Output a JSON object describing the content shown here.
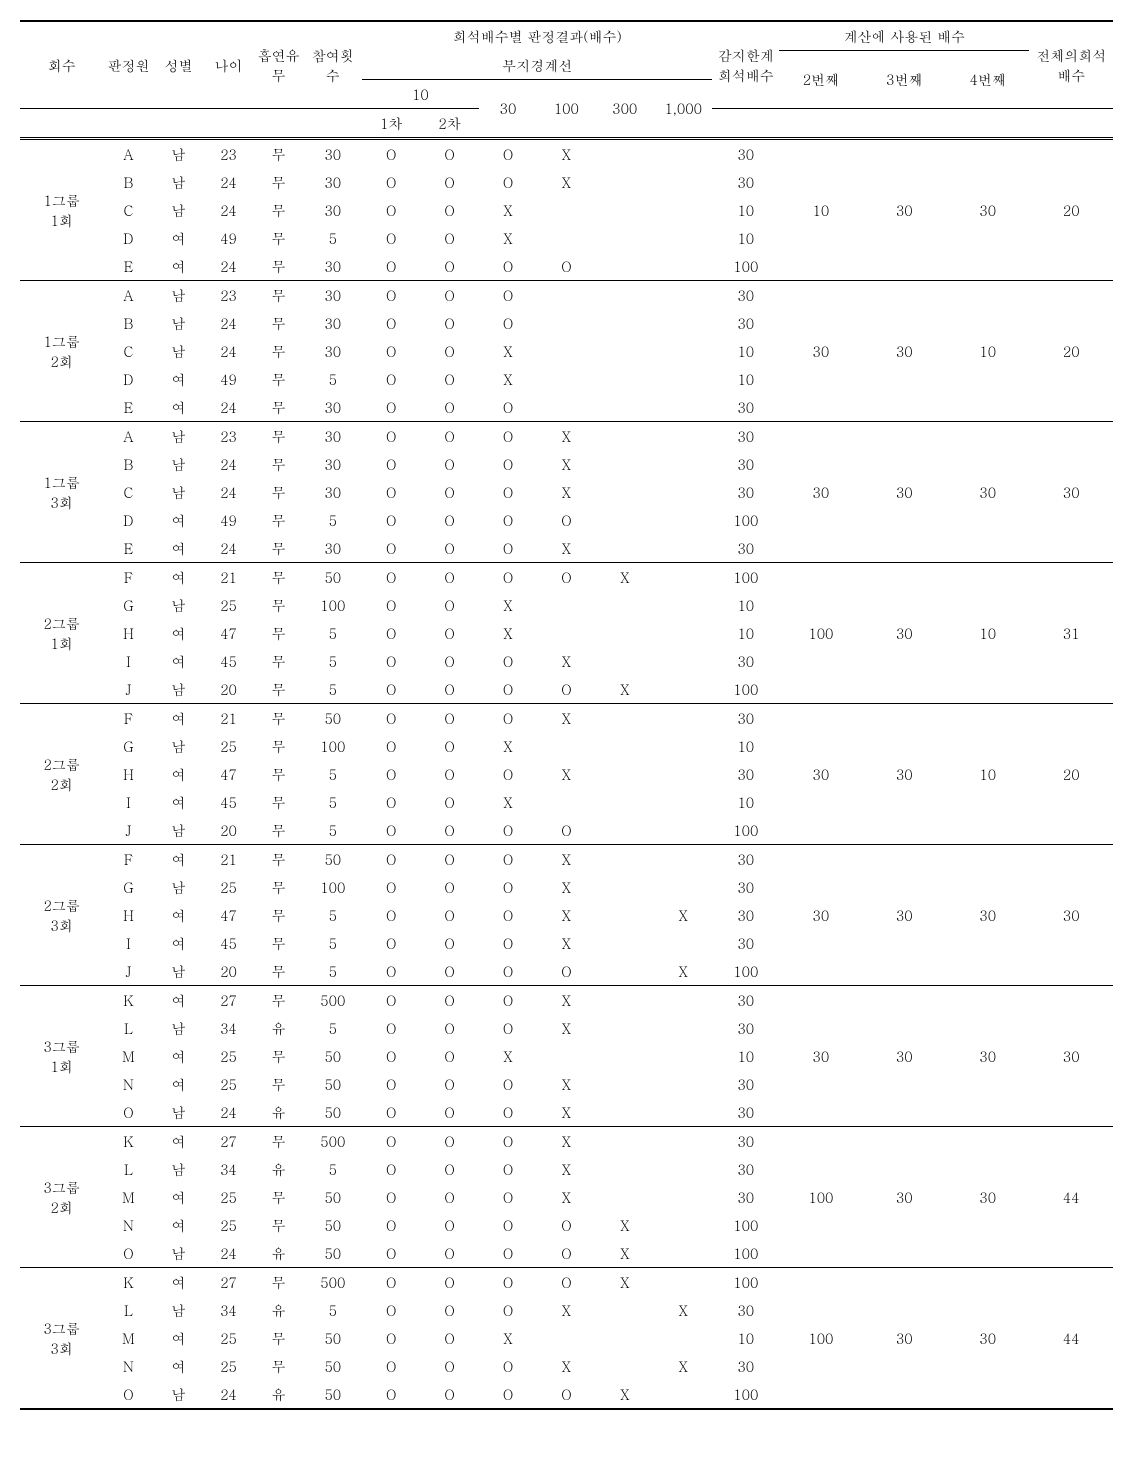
{
  "headers": {
    "session": "회수",
    "panel": "판정원",
    "sex": "성별",
    "age": "나이",
    "smoke": "흡연유무",
    "part": "참여횟수",
    "dilution_group_top": "희석배수별 판정결과(배수)",
    "dilution_group_sub": "부지경계선",
    "d10": "10",
    "d10_1": "1차",
    "d10_2": "2차",
    "d30": "30",
    "d100": "100",
    "d300": "300",
    "d1000": "1,000",
    "limit": "감지한계희석배수",
    "calc_group": "계산에 사용된 배수",
    "calc2": "2번째",
    "calc3": "3번째",
    "calc4": "4번째",
    "total": "전체의희석배수"
  },
  "groups": [
    {
      "session": "1그룹\n1회",
      "calc": [
        "10",
        "30",
        "30"
      ],
      "total": "20",
      "rows": [
        {
          "p": "A",
          "s": "남",
          "a": "23",
          "sm": "무",
          "pa": "30",
          "d": [
            "O",
            "O",
            "O",
            "X",
            "",
            ""
          ],
          "l": "30"
        },
        {
          "p": "B",
          "s": "남",
          "a": "24",
          "sm": "무",
          "pa": "30",
          "d": [
            "O",
            "O",
            "O",
            "X",
            "",
            ""
          ],
          "l": "30"
        },
        {
          "p": "C",
          "s": "남",
          "a": "24",
          "sm": "무",
          "pa": "30",
          "d": [
            "O",
            "O",
            "X",
            "",
            "",
            ""
          ],
          "l": "10"
        },
        {
          "p": "D",
          "s": "여",
          "a": "49",
          "sm": "무",
          "pa": "5",
          "d": [
            "O",
            "O",
            "X",
            "",
            "",
            ""
          ],
          "l": "10"
        },
        {
          "p": "E",
          "s": "여",
          "a": "24",
          "sm": "무",
          "pa": "30",
          "d": [
            "O",
            "O",
            "O",
            "O",
            "",
            ""
          ],
          "l": "100"
        }
      ]
    },
    {
      "session": "1그룹\n2회",
      "calc": [
        "30",
        "30",
        "10"
      ],
      "total": "20",
      "rows": [
        {
          "p": "A",
          "s": "남",
          "a": "23",
          "sm": "무",
          "pa": "30",
          "d": [
            "O",
            "O",
            "O",
            "",
            "",
            ""
          ],
          "l": "30"
        },
        {
          "p": "B",
          "s": "남",
          "a": "24",
          "sm": "무",
          "pa": "30",
          "d": [
            "O",
            "O",
            "O",
            "",
            "",
            ""
          ],
          "l": "30"
        },
        {
          "p": "C",
          "s": "남",
          "a": "24",
          "sm": "무",
          "pa": "30",
          "d": [
            "O",
            "O",
            "X",
            "",
            "",
            ""
          ],
          "l": "10"
        },
        {
          "p": "D",
          "s": "여",
          "a": "49",
          "sm": "무",
          "pa": "5",
          "d": [
            "O",
            "O",
            "X",
            "",
            "",
            ""
          ],
          "l": "10"
        },
        {
          "p": "E",
          "s": "여",
          "a": "24",
          "sm": "무",
          "pa": "30",
          "d": [
            "O",
            "O",
            "O",
            "",
            "",
            ""
          ],
          "l": "30"
        }
      ]
    },
    {
      "session": "1그룹\n3회",
      "calc": [
        "30",
        "30",
        "30"
      ],
      "total": "30",
      "rows": [
        {
          "p": "A",
          "s": "남",
          "a": "23",
          "sm": "무",
          "pa": "30",
          "d": [
            "O",
            "O",
            "O",
            "X",
            "",
            ""
          ],
          "l": "30"
        },
        {
          "p": "B",
          "s": "남",
          "a": "24",
          "sm": "무",
          "pa": "30",
          "d": [
            "O",
            "O",
            "O",
            "X",
            "",
            ""
          ],
          "l": "30"
        },
        {
          "p": "C",
          "s": "남",
          "a": "24",
          "sm": "무",
          "pa": "30",
          "d": [
            "O",
            "O",
            "O",
            "X",
            "",
            ""
          ],
          "l": "30"
        },
        {
          "p": "D",
          "s": "여",
          "a": "49",
          "sm": "무",
          "pa": "5",
          "d": [
            "O",
            "O",
            "O",
            "O",
            "",
            ""
          ],
          "l": "100"
        },
        {
          "p": "E",
          "s": "여",
          "a": "24",
          "sm": "무",
          "pa": "30",
          "d": [
            "O",
            "O",
            "O",
            "X",
            "",
            ""
          ],
          "l": "30"
        }
      ]
    },
    {
      "session": "2그룹\n1회",
      "calc": [
        "100",
        "30",
        "10"
      ],
      "total": "31",
      "rows": [
        {
          "p": "F",
          "s": "여",
          "a": "21",
          "sm": "무",
          "pa": "50",
          "d": [
            "O",
            "O",
            "O",
            "O",
            "X",
            ""
          ],
          "l": "100"
        },
        {
          "p": "G",
          "s": "남",
          "a": "25",
          "sm": "무",
          "pa": "100",
          "d": [
            "O",
            "O",
            "X",
            "",
            "",
            ""
          ],
          "l": "10"
        },
        {
          "p": "H",
          "s": "여",
          "a": "47",
          "sm": "무",
          "pa": "5",
          "d": [
            "O",
            "O",
            "X",
            "",
            "",
            ""
          ],
          "l": "10"
        },
        {
          "p": "I",
          "s": "여",
          "a": "45",
          "sm": "무",
          "pa": "5",
          "d": [
            "O",
            "O",
            "O",
            "X",
            "",
            ""
          ],
          "l": "30"
        },
        {
          "p": "J",
          "s": "남",
          "a": "20",
          "sm": "무",
          "pa": "5",
          "d": [
            "O",
            "O",
            "O",
            "O",
            "X",
            ""
          ],
          "l": "100"
        }
      ]
    },
    {
      "session": "2그룹\n2회",
      "calc": [
        "30",
        "30",
        "10"
      ],
      "total": "20",
      "rows": [
        {
          "p": "F",
          "s": "여",
          "a": "21",
          "sm": "무",
          "pa": "50",
          "d": [
            "O",
            "O",
            "O",
            "X",
            "",
            ""
          ],
          "l": "30"
        },
        {
          "p": "G",
          "s": "남",
          "a": "25",
          "sm": "무",
          "pa": "100",
          "d": [
            "O",
            "O",
            "X",
            "",
            "",
            ""
          ],
          "l": "10"
        },
        {
          "p": "H",
          "s": "여",
          "a": "47",
          "sm": "무",
          "pa": "5",
          "d": [
            "O",
            "O",
            "O",
            "X",
            "",
            ""
          ],
          "l": "30"
        },
        {
          "p": "I",
          "s": "여",
          "a": "45",
          "sm": "무",
          "pa": "5",
          "d": [
            "O",
            "O",
            "X",
            "",
            "",
            ""
          ],
          "l": "10"
        },
        {
          "p": "J",
          "s": "남",
          "a": "20",
          "sm": "무",
          "pa": "5",
          "d": [
            "O",
            "O",
            "O",
            "O",
            "",
            ""
          ],
          "l": "100"
        }
      ]
    },
    {
      "session": "2그룹\n3회",
      "calc": [
        "30",
        "30",
        "30"
      ],
      "total": "30",
      "rows": [
        {
          "p": "F",
          "s": "여",
          "a": "21",
          "sm": "무",
          "pa": "50",
          "d": [
            "O",
            "O",
            "O",
            "X",
            "",
            ""
          ],
          "l": "30"
        },
        {
          "p": "G",
          "s": "남",
          "a": "25",
          "sm": "무",
          "pa": "100",
          "d": [
            "O",
            "O",
            "O",
            "X",
            "",
            ""
          ],
          "l": "30"
        },
        {
          "p": "H",
          "s": "여",
          "a": "47",
          "sm": "무",
          "pa": "5",
          "d": [
            "O",
            "O",
            "O",
            "X",
            "",
            "X"
          ],
          "l": "30"
        },
        {
          "p": "I",
          "s": "여",
          "a": "45",
          "sm": "무",
          "pa": "5",
          "d": [
            "O",
            "O",
            "O",
            "X",
            "",
            ""
          ],
          "l": "30"
        },
        {
          "p": "J",
          "s": "남",
          "a": "20",
          "sm": "무",
          "pa": "5",
          "d": [
            "O",
            "O",
            "O",
            "O",
            "",
            "X"
          ],
          "l": "100"
        }
      ]
    },
    {
      "session": "3그룹\n1회",
      "calc": [
        "30",
        "30",
        "30"
      ],
      "total": "30",
      "rows": [
        {
          "p": "K",
          "s": "여",
          "a": "27",
          "sm": "무",
          "pa": "500",
          "d": [
            "O",
            "O",
            "O",
            "X",
            "",
            ""
          ],
          "l": "30"
        },
        {
          "p": "L",
          "s": "남",
          "a": "34",
          "sm": "유",
          "pa": "5",
          "d": [
            "O",
            "O",
            "O",
            "X",
            "",
            ""
          ],
          "l": "30"
        },
        {
          "p": "M",
          "s": "여",
          "a": "25",
          "sm": "무",
          "pa": "50",
          "d": [
            "O",
            "O",
            "X",
            "",
            "",
            ""
          ],
          "l": "10"
        },
        {
          "p": "N",
          "s": "여",
          "a": "25",
          "sm": "무",
          "pa": "50",
          "d": [
            "O",
            "O",
            "O",
            "X",
            "",
            ""
          ],
          "l": "30"
        },
        {
          "p": "O",
          "s": "남",
          "a": "24",
          "sm": "유",
          "pa": "50",
          "d": [
            "O",
            "O",
            "O",
            "X",
            "",
            ""
          ],
          "l": "30"
        }
      ]
    },
    {
      "session": "3그룹\n2회",
      "calc": [
        "100",
        "30",
        "30"
      ],
      "total": "44",
      "rows": [
        {
          "p": "K",
          "s": "여",
          "a": "27",
          "sm": "무",
          "pa": "500",
          "d": [
            "O",
            "O",
            "O",
            "X",
            "",
            ""
          ],
          "l": "30"
        },
        {
          "p": "L",
          "s": "남",
          "a": "34",
          "sm": "유",
          "pa": "5",
          "d": [
            "O",
            "O",
            "O",
            "X",
            "",
            ""
          ],
          "l": "30"
        },
        {
          "p": "M",
          "s": "여",
          "a": "25",
          "sm": "무",
          "pa": "50",
          "d": [
            "O",
            "O",
            "O",
            "X",
            "",
            ""
          ],
          "l": "30"
        },
        {
          "p": "N",
          "s": "여",
          "a": "25",
          "sm": "무",
          "pa": "50",
          "d": [
            "O",
            "O",
            "O",
            "O",
            "X",
            ""
          ],
          "l": "100"
        },
        {
          "p": "O",
          "s": "남",
          "a": "24",
          "sm": "유",
          "pa": "50",
          "d": [
            "O",
            "O",
            "O",
            "O",
            "X",
            ""
          ],
          "l": "100"
        }
      ]
    },
    {
      "session": "3그룹\n3회",
      "calc": [
        "100",
        "30",
        "30"
      ],
      "total": "44",
      "rows": [
        {
          "p": "K",
          "s": "여",
          "a": "27",
          "sm": "무",
          "pa": "500",
          "d": [
            "O",
            "O",
            "O",
            "O",
            "X",
            ""
          ],
          "l": "100"
        },
        {
          "p": "L",
          "s": "남",
          "a": "34",
          "sm": "유",
          "pa": "5",
          "d": [
            "O",
            "O",
            "O",
            "X",
            "",
            "X"
          ],
          "l": "30"
        },
        {
          "p": "M",
          "s": "여",
          "a": "25",
          "sm": "무",
          "pa": "50",
          "d": [
            "O",
            "O",
            "X",
            "",
            "",
            ""
          ],
          "l": "10"
        },
        {
          "p": "N",
          "s": "여",
          "a": "25",
          "sm": "무",
          "pa": "50",
          "d": [
            "O",
            "O",
            "O",
            "X",
            "",
            "X"
          ],
          "l": "30"
        },
        {
          "p": "O",
          "s": "남",
          "a": "24",
          "sm": "유",
          "pa": "50",
          "d": [
            "O",
            "O",
            "O",
            "O",
            "X",
            ""
          ],
          "l": "100"
        }
      ]
    }
  ]
}
